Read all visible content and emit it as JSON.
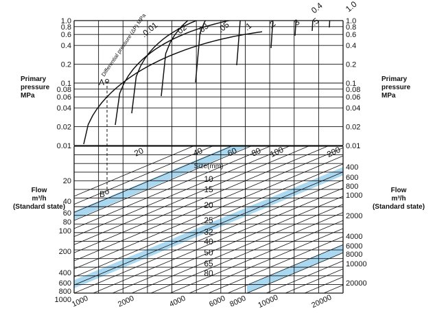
{
  "chart_data": {
    "type": "line",
    "top_panel": {
      "ylabel_lines": [
        "Primary",
        "pressure",
        "MPa"
      ],
      "y_ticks": [
        "1.0",
        "0.8",
        "0.6",
        "0.4",
        "0.2",
        "0.1",
        "0.08",
        "0.06",
        "0.04",
        "0.02",
        "0.01"
      ],
      "y_ticks_right": [
        "1.0",
        "0.8",
        "0.6",
        "0.4",
        "0.2",
        "0.1",
        "0.08",
        "0.06",
        "0.04",
        "0.02",
        "0.01"
      ],
      "curve_title": "Differential pressure (ΔP) MPa",
      "series": [
        {
          "name": "0.01"
        },
        {
          "name": "0.02"
        },
        {
          "name": "0.03"
        },
        {
          "name": "0.05"
        },
        {
          "name": "0.1"
        },
        {
          "name": "0.2"
        },
        {
          "name": "0.3"
        },
        {
          "name": "0.5"
        },
        {
          "name": "0.4"
        },
        {
          "name": "1.0"
        }
      ],
      "series_labels": [
        ".0.01",
        ".02",
        ".03",
        ".05",
        ".1",
        ".2",
        ".3",
        ".5",
        "0.4",
        "1.0"
      ],
      "point_a": "A"
    },
    "bottom_panel": {
      "ylabel_lines": [
        "Flow",
        "m³/h",
        "(Standard state)"
      ],
      "left_flow_ticks": [
        "20",
        "40",
        "60",
        "80",
        "100",
        "200",
        "400",
        "600",
        "800",
        "1000"
      ],
      "right_flow_ticks": [
        "400",
        "600",
        "800",
        "1000",
        "2000",
        "4000",
        "6000",
        "8000",
        "10000",
        "20000"
      ],
      "bottom_flow_ticks": [
        "1000",
        "2000",
        "4000",
        "6000",
        "8000",
        "10000",
        "20000"
      ],
      "size_title": "Size(mm)",
      "size_ticks": [
        "10",
        "15",
        "20",
        "25",
        "32",
        "40",
        "50",
        "65",
        "80"
      ],
      "diagonal_scale_labels": [
        "20",
        "40",
        "60",
        "80",
        "100",
        "200"
      ],
      "point_b": "B"
    },
    "grid": true,
    "highlight_color": "#a9d8f0",
    "line_color": "#111111"
  }
}
